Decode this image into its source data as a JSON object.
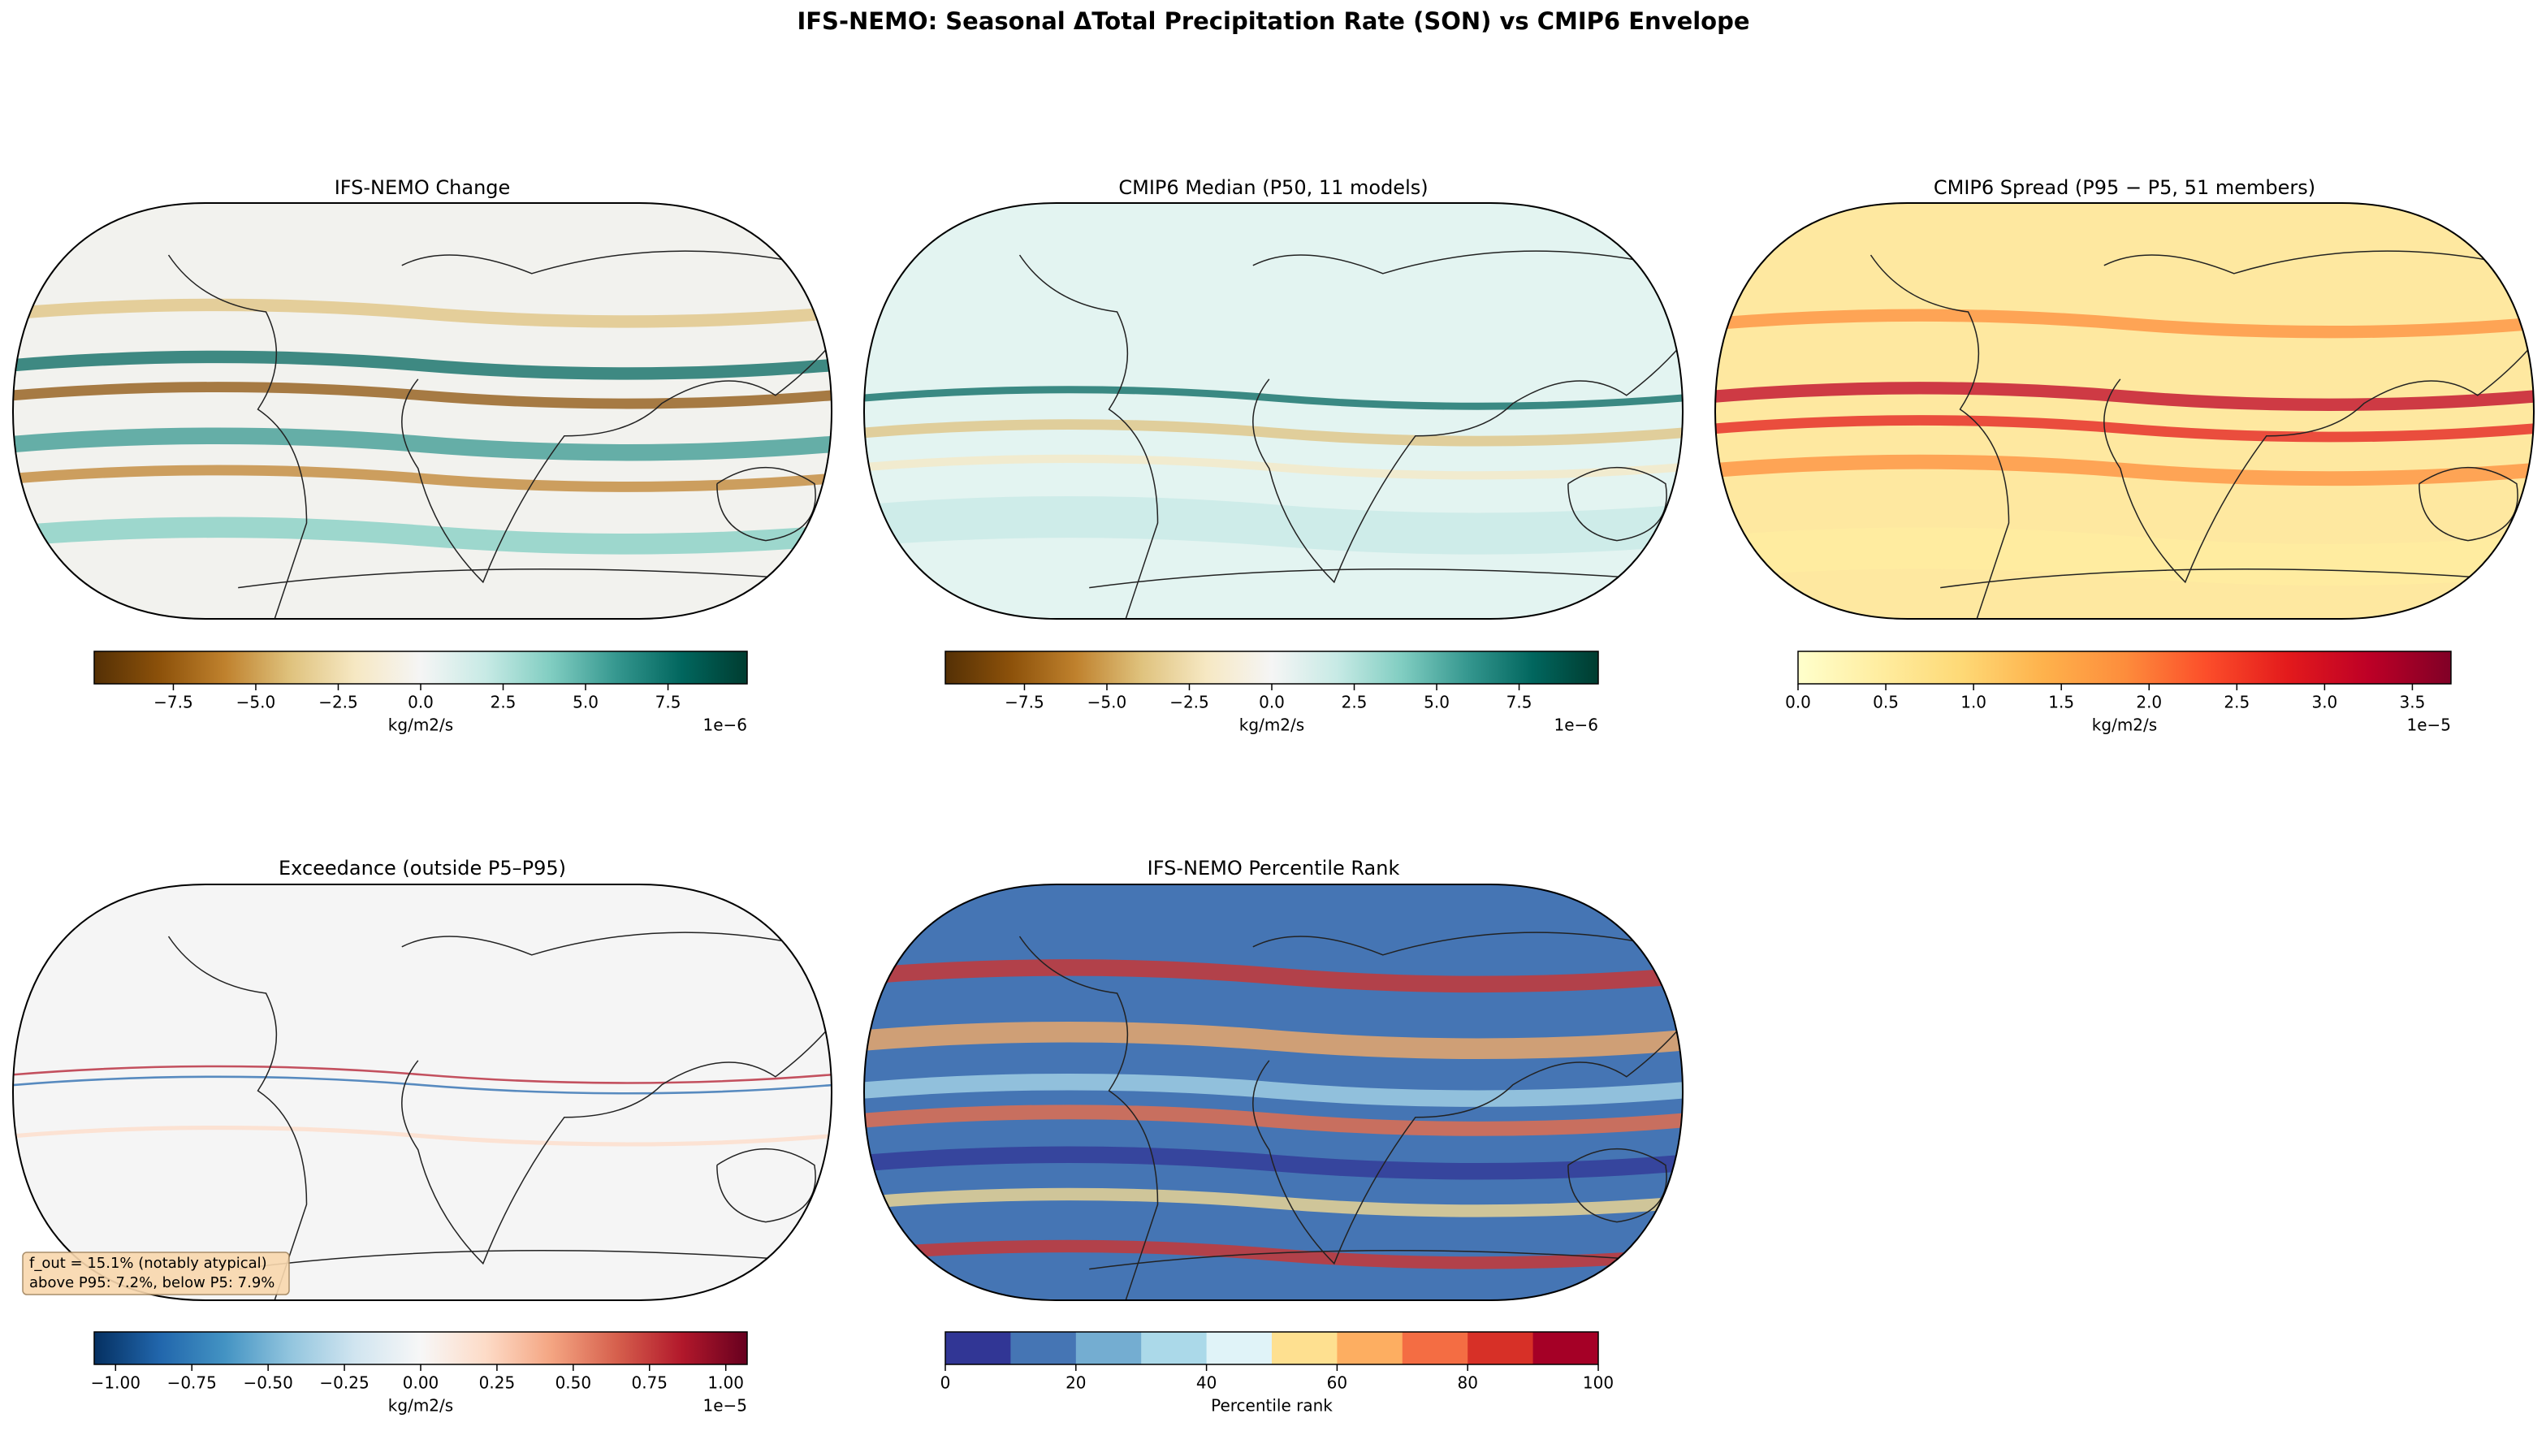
{
  "title": "IFS-NEMO: Seasonal ΔTotal Precipitation Rate (SON) vs CMIP6 Envelope",
  "chart_data": [
    {
      "type": "map",
      "title": "IFS-NEMO Change",
      "clim": [
        -9.9e-06,
        9.9e-06
      ],
      "clabel": "kg/m2/s",
      "coffset": "1e−6",
      "cticks": [
        {
          "value": -7.5e-06,
          "label": "−7.5"
        },
        {
          "value": -5e-06,
          "label": "−5.0"
        },
        {
          "value": -2.5e-06,
          "label": "−2.5"
        },
        {
          "value": 0,
          "label": "0.0"
        },
        {
          "value": 2.5e-06,
          "label": "2.5"
        },
        {
          "value": 5e-06,
          "label": "5.0"
        },
        {
          "value": 7.5e-06,
          "label": "7.5"
        }
      ],
      "colors": [
        "#543005",
        "#8c510a",
        "#bf812d",
        "#dfc27d",
        "#f6e8c3",
        "#f5f5f5",
        "#c7eae5",
        "#80cdc1",
        "#35978f",
        "#01665e",
        "#003c30"
      ]
    },
    {
      "type": "map",
      "title": "CMIP6 Median (P50, 11 models)",
      "clim": [
        -9.9e-06,
        9.9e-06
      ],
      "clabel": "kg/m2/s",
      "coffset": "1e−6",
      "cticks": [
        {
          "value": -7.5e-06,
          "label": "−7.5"
        },
        {
          "value": -5e-06,
          "label": "−5.0"
        },
        {
          "value": -2.5e-06,
          "label": "−2.5"
        },
        {
          "value": 0,
          "label": "0.0"
        },
        {
          "value": 2.5e-06,
          "label": "2.5"
        },
        {
          "value": 5e-06,
          "label": "5.0"
        },
        {
          "value": 7.5e-06,
          "label": "7.5"
        }
      ],
      "colors": [
        "#543005",
        "#8c510a",
        "#bf812d",
        "#dfc27d",
        "#f6e8c3",
        "#f5f5f5",
        "#c7eae5",
        "#80cdc1",
        "#35978f",
        "#01665e",
        "#003c30"
      ]
    },
    {
      "type": "map",
      "title": "CMIP6 Spread (P95 − P5, 51 members)",
      "clim": [
        0,
        3.72e-05
      ],
      "clabel": "kg/m2/s",
      "coffset": "1e−5",
      "cticks": [
        {
          "value": 0,
          "label": "0.0"
        },
        {
          "value": 5e-06,
          "label": "0.5"
        },
        {
          "value": 1e-05,
          "label": "1.0"
        },
        {
          "value": 1.5e-05,
          "label": "1.5"
        },
        {
          "value": 2e-05,
          "label": "2.0"
        },
        {
          "value": 2.5e-05,
          "label": "2.5"
        },
        {
          "value": 3e-05,
          "label": "3.0"
        },
        {
          "value": 3.5e-05,
          "label": "3.5"
        }
      ],
      "colors": [
        "#ffffcc",
        "#ffeda0",
        "#fed976",
        "#feb24c",
        "#fd8d3c",
        "#fc4e2a",
        "#e31a1c",
        "#bd0026",
        "#800026"
      ]
    },
    {
      "type": "map",
      "title": "Exceedance (outside P5–P95)",
      "clim": [
        -1.07e-05,
        1.07e-05
      ],
      "clabel": "kg/m2/s",
      "coffset": "1e−5",
      "cticks": [
        {
          "value": -1e-05,
          "label": "−1.00"
        },
        {
          "value": -7.5e-06,
          "label": "−0.75"
        },
        {
          "value": -5e-06,
          "label": "−0.50"
        },
        {
          "value": -2.5e-06,
          "label": "−0.25"
        },
        {
          "value": 0,
          "label": "0.00"
        },
        {
          "value": 2.5e-06,
          "label": "0.25"
        },
        {
          "value": 5e-06,
          "label": "0.50"
        },
        {
          "value": 7.5e-06,
          "label": "0.75"
        },
        {
          "value": 1e-05,
          "label": "1.00"
        }
      ],
      "colors": [
        "#053061",
        "#2166ac",
        "#4393c3",
        "#92c5de",
        "#d1e5f0",
        "#f7f7f7",
        "#fddbc7",
        "#f4a582",
        "#d6604d",
        "#b2182b",
        "#67001f"
      ],
      "annotation": [
        "f_out = 15.1% (notably atypical)",
        "above P95: 7.2%, below P5: 7.9%"
      ]
    },
    {
      "type": "map",
      "title": "IFS-NEMO Percentile Rank",
      "discrete": true,
      "clim": [
        0,
        100
      ],
      "clabel": "Percentile rank",
      "cticks": [
        0,
        20,
        40,
        60,
        80,
        100
      ],
      "colors": [
        "#313695",
        "#4575b4",
        "#74add1",
        "#abd9e9",
        "#e0f3f8",
        "#fee090",
        "#fdae61",
        "#f46d43",
        "#d73027",
        "#a50026"
      ]
    }
  ]
}
